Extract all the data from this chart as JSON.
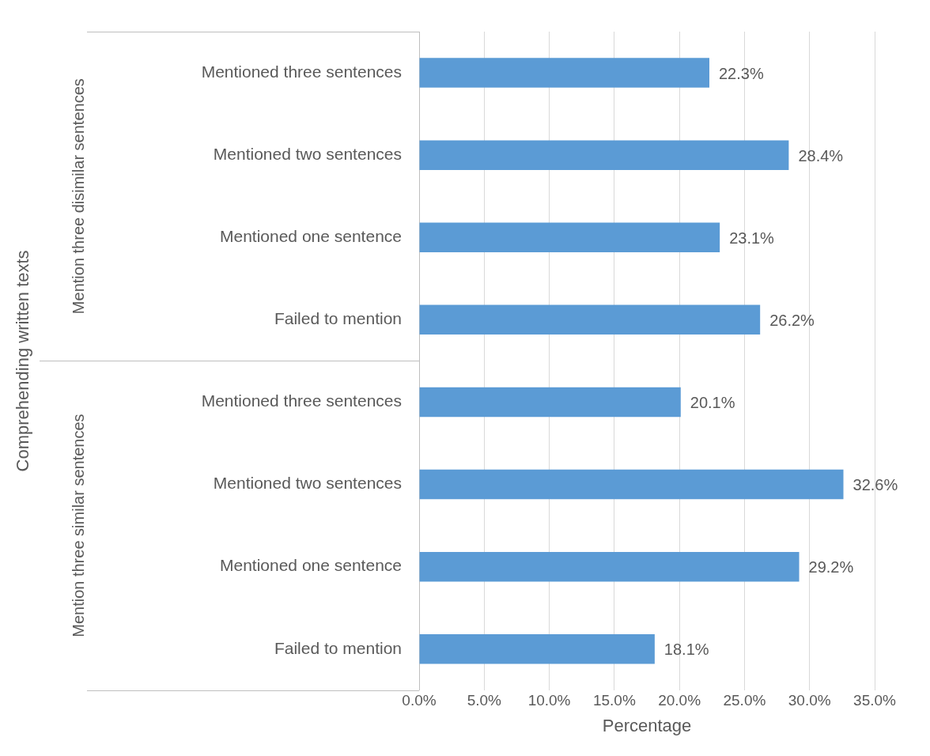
{
  "chart_data": {
    "type": "bar",
    "orientation": "horizontal",
    "xlabel": "Percentage",
    "categories": [
      "Mentioned three sentences",
      "Mentioned two sentences",
      "Mentioned one sentence",
      "Failed to mention",
      "Mentioned three sentences",
      "Mentioned two sentences",
      "Mentioned one sentence",
      "Failed to mention"
    ],
    "values": [
      22.3,
      28.4,
      23.1,
      26.2,
      20.1,
      32.6,
      29.2,
      18.1
    ],
    "value_labels": [
      "22.3%",
      "28.4%",
      "23.1%",
      "26.2%",
      "20.1%",
      "32.6%",
      "29.2%",
      "18.1%"
    ],
    "color": "#5b9bd5",
    "xlim": [
      0,
      35
    ],
    "xticks": [
      {
        "value": 0,
        "label": "0.0%"
      },
      {
        "value": 5,
        "label": "5.0%"
      },
      {
        "value": 10,
        "label": "10.0%"
      },
      {
        "value": 15,
        "label": "15.0%"
      },
      {
        "value": 20,
        "label": "20.0%"
      },
      {
        "value": 25,
        "label": "25.0%"
      },
      {
        "value": 30,
        "label": "30.0%"
      },
      {
        "value": 35,
        "label": "35.0%"
      }
    ],
    "grid": "x",
    "legend": false,
    "annotations": [
      "Comprehending written texts",
      "Mention three disimilar sentences",
      "Mention three similar sentences"
    ]
  }
}
